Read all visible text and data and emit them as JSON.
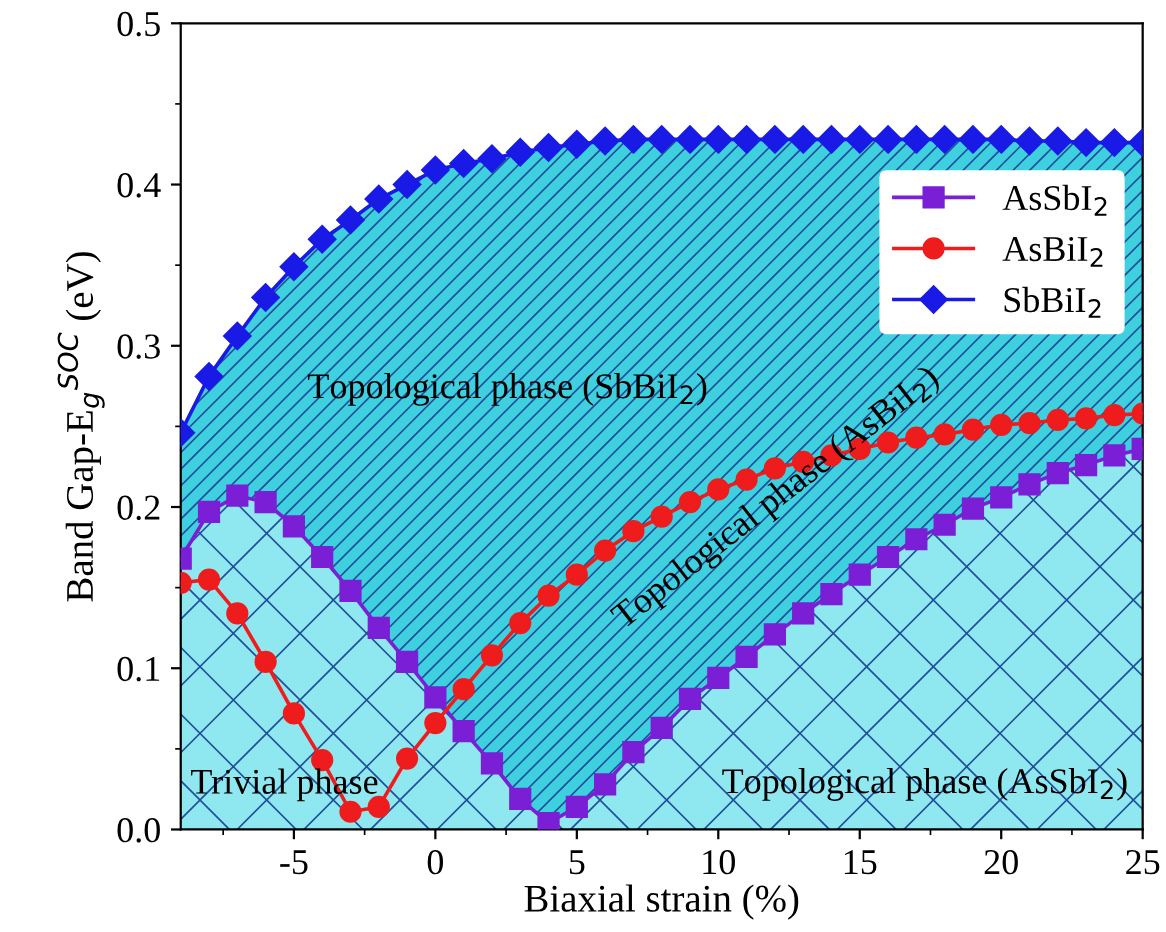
{
  "chart_data": {
    "type": "line",
    "xlabel": "Biaxial strain (%)",
    "ylabel": "Band Gap-E$_{g}$$^{SOC}$ (eV)",
    "x": [
      -9,
      -8,
      -7,
      -6,
      -5,
      -4,
      -3,
      -2,
      -1,
      0,
      1,
      2,
      3,
      4,
      5,
      6,
      7,
      8,
      9,
      10,
      11,
      12,
      13,
      14,
      15,
      16,
      17,
      18,
      19,
      20,
      21,
      22,
      23,
      24,
      25
    ],
    "series": [
      {
        "name": "AsSbI$_{2}$",
        "color": "#7a1fd6",
        "type": "area",
        "marker": "square",
        "values": [
          0.168,
          0.197,
          0.207,
          0.203,
          0.188,
          0.169,
          0.148,
          0.125,
          0.104,
          0.082,
          0.061,
          0.041,
          0.019,
          0.004,
          0.014,
          0.028,
          0.048,
          0.063,
          0.081,
          0.094,
          0.107,
          0.121,
          0.134,
          0.146,
          0.158,
          0.169,
          0.18,
          0.189,
          0.199,
          0.206,
          0.214,
          0.221,
          0.226,
          0.232,
          0.236
        ]
      },
      {
        "name": "AsBiI$_{2}$",
        "color": "#ee1c1c",
        "marker": "circle",
        "values": [
          0.153,
          0.155,
          0.134,
          0.104,
          0.072,
          0.043,
          0.011,
          0.014,
          0.044,
          0.066,
          0.087,
          0.108,
          0.128,
          0.145,
          0.158,
          0.173,
          0.185,
          0.194,
          0.203,
          0.211,
          0.217,
          0.224,
          0.228,
          0.232,
          0.236,
          0.24,
          0.243,
          0.245,
          0.248,
          0.251,
          0.252,
          0.254,
          0.255,
          0.257,
          0.258
        ]
      },
      {
        "name": "SbBiI$_{2}$",
        "color": "#1a1ae6",
        "type": "area",
        "marker": "diamond",
        "values": [
          0.246,
          0.281,
          0.306,
          0.33,
          0.349,
          0.366,
          0.378,
          0.391,
          0.4,
          0.409,
          0.413,
          0.416,
          0.42,
          0.423,
          0.425,
          0.427,
          0.428,
          0.428,
          0.428,
          0.428,
          0.428,
          0.428,
          0.428,
          0.428,
          0.428,
          0.428,
          0.428,
          0.428,
          0.428,
          0.428,
          0.427,
          0.427,
          0.426,
          0.426,
          0.426
        ]
      }
    ],
    "xlim": [
      -9,
      25
    ],
    "xticks": [
      -5,
      0,
      5,
      10,
      15,
      20,
      25
    ],
    "ylim": [
      0,
      0.5
    ],
    "yticks": [
      {
        "value": 0,
        "label": "0.0"
      },
      {
        "value": 0.1,
        "label": "0.1"
      },
      {
        "value": 0.2,
        "label": "0.2"
      },
      {
        "value": 0.3,
        "label": "0.3"
      },
      {
        "value": 0.4,
        "label": "0.4"
      },
      {
        "value": 0.5,
        "label": "0.5"
      }
    ],
    "annotations": [
      "Topological phase (SbBiI$_{2}$)",
      "Topological phase (AsBiI$_{2}$)",
      "Topological phase (AsSbI$_{2}$)",
      "Trivial phase"
    ],
    "legend": "top right",
    "grid": false,
    "line_style": "solid"
  }
}
